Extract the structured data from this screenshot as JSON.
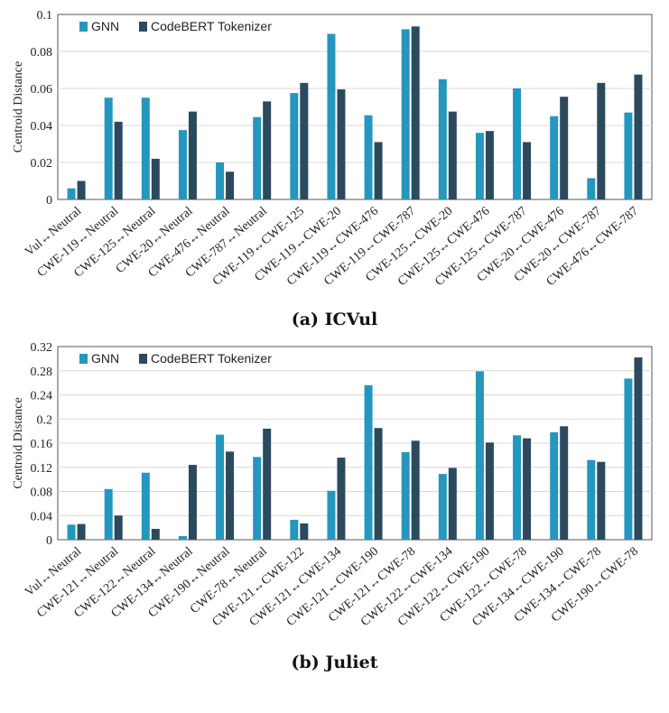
{
  "colors": {
    "gnn": "#2596be",
    "codebert": "#2b4a5e",
    "grid": "#d9d9d9",
    "axis": "#555555"
  },
  "chart_data": [
    {
      "type": "bar",
      "caption": "(a) ICVul",
      "ylabel": "Centroid Distance",
      "ylim": [
        0,
        0.1
      ],
      "yticks": [
        0,
        0.02,
        0.04,
        0.06,
        0.08,
        0.1
      ],
      "ytick_labels": [
        "0",
        "0.02",
        "0.04",
        "0.06",
        "0.08",
        "0.1"
      ],
      "legend": [
        "GNN",
        "CodeBERT Tokenizer"
      ],
      "categories": [
        "Vul↔Neutral",
        "CWE-119↔Neutral",
        "CWE-125↔Neutral",
        "CWE-20↔Neutral",
        "CWE-476↔Neutral",
        "CWE-787↔Neutral",
        "CWE-119↔CWE-125",
        "CWE-119↔CWE-20",
        "CWE-119↔CWE-476",
        "CWE-119↔CWE-787",
        "CWE-125↔CWE-20",
        "CWE-125↔CWE-476",
        "CWE-125↔CWE-787",
        "CWE-20↔CWE-476",
        "CWE-20↔CWE-787",
        "CWE-476↔CWE-787"
      ],
      "series": [
        {
          "name": "GNN",
          "values": [
            0.006,
            0.055,
            0.055,
            0.0375,
            0.02,
            0.0445,
            0.0575,
            0.0895,
            0.0455,
            0.092,
            0.065,
            0.036,
            0.06,
            0.045,
            0.0115,
            0.047
          ]
        },
        {
          "name": "CodeBERT Tokenizer",
          "values": [
            0.01,
            0.042,
            0.022,
            0.0475,
            0.015,
            0.053,
            0.063,
            0.0595,
            0.031,
            0.0935,
            0.0475,
            0.037,
            0.031,
            0.0555,
            0.063,
            0.0675
          ]
        }
      ]
    },
    {
      "type": "bar",
      "caption": "(b) Juliet",
      "ylabel": "Centroid Distance",
      "ylim": [
        0,
        0.32
      ],
      "yticks": [
        0,
        0.04,
        0.08,
        0.12,
        0.16,
        0.2,
        0.24,
        0.28,
        0.32
      ],
      "ytick_labels": [
        "0",
        "0.04",
        "0.08",
        "0.12",
        "0.16",
        "0.2",
        "0.24",
        "0.28",
        "0.32"
      ],
      "legend": [
        "GNN",
        "CodeBERT Tokenizer"
      ],
      "categories": [
        "Vul↔Neutral",
        "CWE-121↔Neutral",
        "CWE-122↔Neutral",
        "CWE-134↔Neutral",
        "CWE-190↔Neutral",
        "CWE-78↔Neutral",
        "CWE-121↔CWE-122",
        "CWE-121↔CWE-134",
        "CWE-121↔CWE-190",
        "CWE-121↔CWE-78",
        "CWE-122↔CWE-134",
        "CWE-122↔CWE-190",
        "CWE-122↔CWE-78",
        "CWE-134↔CWE-190",
        "CWE-134↔CWE-78",
        "CWE-190↔CWE-78"
      ],
      "series": [
        {
          "name": "GNN",
          "values": [
            0.025,
            0.084,
            0.111,
            0.006,
            0.174,
            0.137,
            0.033,
            0.081,
            0.256,
            0.145,
            0.109,
            0.279,
            0.173,
            0.178,
            0.132,
            0.267
          ]
        },
        {
          "name": "CodeBERT Tokenizer",
          "values": [
            0.026,
            0.04,
            0.018,
            0.124,
            0.146,
            0.184,
            0.027,
            0.136,
            0.185,
            0.164,
            0.119,
            0.161,
            0.168,
            0.188,
            0.129,
            0.302
          ]
        }
      ]
    }
  ]
}
